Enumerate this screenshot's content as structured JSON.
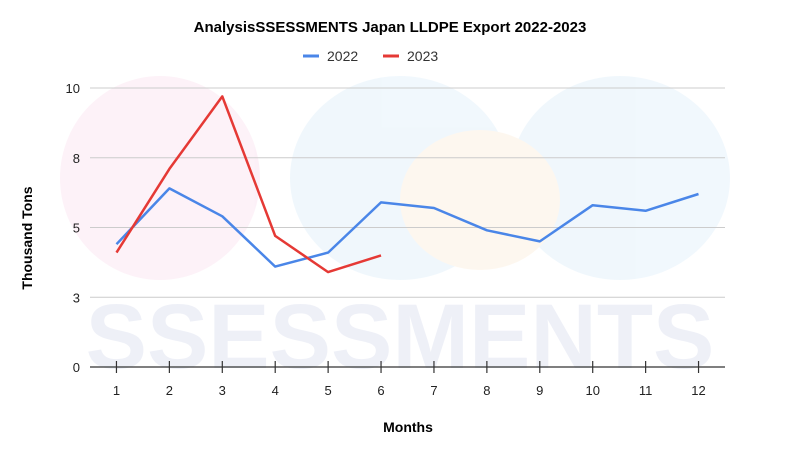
{
  "chart_data": {
    "type": "line",
    "title": "AnalysisSSESSMENTS Japan LLDPE Export 2022-2023",
    "xlabel": "Months",
    "ylabel": "Thousand Tons",
    "x": [
      1,
      2,
      3,
      4,
      5,
      6,
      7,
      8,
      9,
      10,
      11,
      12
    ],
    "x_tick_labels": [
      "1",
      "2",
      "3",
      "4",
      "5",
      "6",
      "7",
      "8",
      "9",
      "10",
      "11",
      "12"
    ],
    "y_tick_values": [
      0,
      2.5,
      5,
      7.5,
      10
    ],
    "y_tick_labels": [
      "0",
      "3",
      "5",
      "8",
      "10"
    ],
    "ylim": [
      0,
      10
    ],
    "grid": true,
    "legend_position": "top",
    "series": [
      {
        "name": "2022",
        "color": "#4a86e8",
        "values": [
          4.4,
          6.4,
          5.4,
          3.6,
          4.1,
          5.9,
          5.7,
          4.9,
          4.5,
          5.8,
          5.6,
          6.2
        ]
      },
      {
        "name": "2023",
        "color": "#e53935",
        "values": [
          4.1,
          7.1,
          9.7,
          4.7,
          3.4,
          4.0,
          null,
          null,
          null,
          null,
          null,
          null
        ]
      }
    ],
    "watermark": "SSESSMENTS"
  }
}
